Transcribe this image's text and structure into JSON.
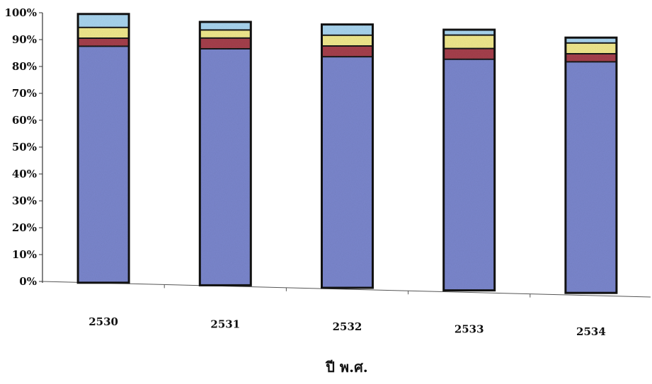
{
  "chart_data": {
    "type": "bar",
    "stacked": true,
    "title": "",
    "xlabel": "ปี พ.ศ.",
    "ylabel": "",
    "ylim": [
      0,
      100
    ],
    "y_tick_labels": [
      "0%",
      "10%",
      "20%",
      "30%",
      "40%",
      "50%",
      "60%",
      "70%",
      "80%",
      "90%",
      "100%"
    ],
    "categories": [
      "2530",
      "2531",
      "2532",
      "2533",
      "2534"
    ],
    "series": [
      {
        "color": "#7a86cc",
        "values": [
          88,
          88,
          86,
          86,
          86
        ]
      },
      {
        "color": "#a5404c",
        "values": [
          3,
          4,
          4,
          4,
          3
        ]
      },
      {
        "color": "#efe78c",
        "values": [
          4,
          3,
          4,
          5,
          4
        ]
      },
      {
        "color": "#a8d4ee",
        "values": [
          5,
          3,
          4,
          2,
          2
        ]
      }
    ],
    "grid": false,
    "legend": "none"
  }
}
